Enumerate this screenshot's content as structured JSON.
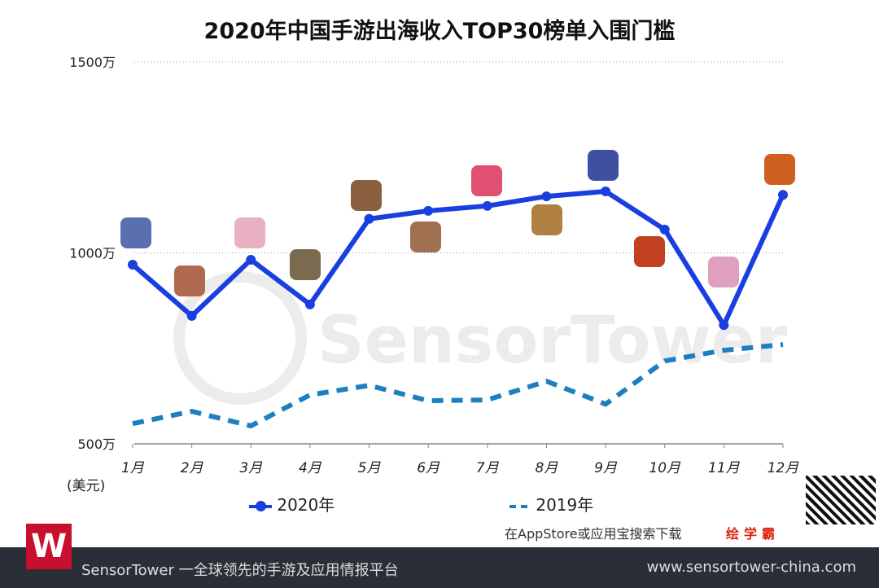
{
  "title": "2020年中国手游出海收入TOP30榜单入围门槛",
  "unit_label": "(美元)",
  "watermark": "SensorTower",
  "footer": {
    "left": "SensorTower 一全球领先的手游及应用情报平台",
    "right": "www.sensortower-china.com",
    "overlay_brand": "绘学霸",
    "overlay_text": "在AppStore或应用宝搜索下载",
    "badge": "W"
  },
  "colors": {
    "s2020": "#1a3fe0",
    "s2019": "#1e7fc0"
  },
  "chart_data": {
    "type": "line",
    "title": "2020年中国手游出海收入TOP30榜单入围门槛",
    "ylabel": "(美元)",
    "ylim": [
      500,
      1500
    ],
    "yticks": [
      "500万",
      "1000万",
      "1500万"
    ],
    "ytick_values": [
      500,
      1000,
      1500
    ],
    "categories": [
      "1月",
      "2月",
      "3月",
      "4月",
      "5月",
      "6月",
      "7月",
      "8月",
      "9月",
      "10月",
      "11月",
      "12月"
    ],
    "series": [
      {
        "name": "2020年",
        "style": "solid-markers",
        "values": [
          969,
          835,
          982,
          865,
          1089,
          1110,
          1123,
          1148,
          1161,
          1061,
          811,
          1152
        ]
      },
      {
        "name": "2019年",
        "style": "dashed",
        "values": [
          553,
          585,
          547,
          628,
          653,
          613,
          615,
          664,
          604,
          717,
          745,
          760
        ]
      }
    ],
    "legend": "bottom",
    "grid": "dotted horizontal"
  }
}
